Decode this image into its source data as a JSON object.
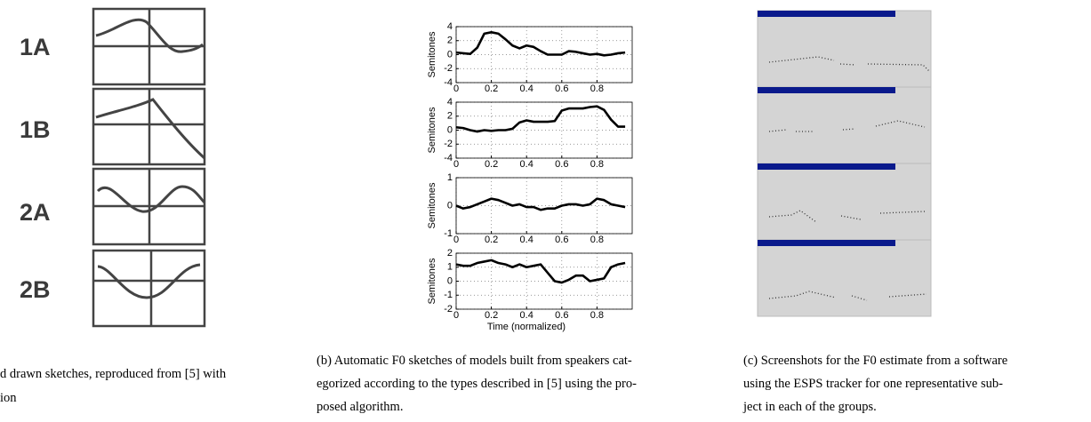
{
  "panel_a": {
    "labels": [
      "1A",
      "1B",
      "2A",
      "2B"
    ],
    "caption": [
      "d drawn sketches, reproduced from [5] with",
      "ion"
    ]
  },
  "panel_b": {
    "caption": [
      "(b) Automatic F0 sketches of models built from speakers cat-",
      "egorized according to the types described in [5] using the pro-",
      "posed algorithm."
    ]
  },
  "panel_c": {
    "caption": [
      "(c) Screenshots for the F0 estimate from a software",
      "using the ESPS tracker for one representative sub-",
      "ject in each of the groups."
    ]
  },
  "chart_data": [
    {
      "type": "line",
      "ylabel": "Semitones",
      "xlim": [
        0,
        1
      ],
      "xticks": [
        0,
        0.2,
        0.4,
        0.6,
        0.8
      ],
      "ylim": [
        -4,
        4
      ],
      "yticks": [
        -4,
        -2,
        0,
        2,
        4
      ],
      "grid": true,
      "x": [
        0,
        0.04,
        0.08,
        0.12,
        0.16,
        0.2,
        0.24,
        0.28,
        0.32,
        0.36,
        0.4,
        0.44,
        0.48,
        0.52,
        0.56,
        0.6,
        0.64,
        0.68,
        0.72,
        0.76,
        0.8,
        0.84,
        0.88,
        0.92,
        0.96
      ],
      "series": [
        {
          "color": "#000000",
          "values": [
            0.3,
            0.2,
            0.1,
            1.0,
            3.0,
            3.2,
            3.0,
            2.2,
            1.3,
            0.9,
            1.3,
            1.1,
            0.5,
            0,
            0,
            0,
            0.5,
            0.4,
            0.2,
            0,
            0.1,
            -0.1,
            0,
            0.2,
            0.3
          ]
        }
      ]
    },
    {
      "type": "line",
      "ylabel": "Semitones",
      "xlim": [
        0,
        1
      ],
      "xticks": [
        0,
        0.2,
        0.4,
        0.6,
        0.8
      ],
      "ylim": [
        -4,
        4
      ],
      "yticks": [
        -4,
        -2,
        0,
        2,
        4
      ],
      "grid": true,
      "x": [
        0,
        0.04,
        0.08,
        0.12,
        0.16,
        0.2,
        0.24,
        0.28,
        0.32,
        0.36,
        0.4,
        0.44,
        0.48,
        0.52,
        0.56,
        0.6,
        0.64,
        0.68,
        0.72,
        0.76,
        0.8,
        0.84,
        0.88,
        0.92,
        0.96
      ],
      "series": [
        {
          "color": "#000000",
          "values": [
            0.4,
            0.3,
            0,
            -0.2,
            0,
            -0.1,
            0,
            0,
            0.2,
            1.1,
            1.4,
            1.2,
            1.2,
            1.2,
            1.3,
            2.8,
            3.1,
            3.1,
            3.1,
            3.3,
            3.4,
            2.9,
            1.5,
            0.5,
            0.5
          ]
        }
      ]
    },
    {
      "type": "line",
      "ylabel": "Semitones",
      "xlim": [
        0,
        1
      ],
      "xticks": [
        0,
        0.2,
        0.4,
        0.6,
        0.8
      ],
      "ylim": [
        -1,
        1
      ],
      "yticks": [
        -1,
        0,
        1
      ],
      "grid": true,
      "x": [
        0,
        0.04,
        0.08,
        0.12,
        0.16,
        0.2,
        0.24,
        0.28,
        0.32,
        0.36,
        0.4,
        0.44,
        0.48,
        0.52,
        0.56,
        0.6,
        0.64,
        0.68,
        0.72,
        0.76,
        0.8,
        0.84,
        0.88,
        0.92,
        0.96
      ],
      "series": [
        {
          "color": "#000000",
          "values": [
            0,
            -0.1,
            -0.05,
            0.05,
            0.15,
            0.25,
            0.2,
            0.1,
            0,
            0.05,
            -0.05,
            -0.05,
            -0.15,
            -0.1,
            -0.1,
            0,
            0.05,
            0.05,
            0,
            0.05,
            0.25,
            0.2,
            0.05,
            0,
            -0.05
          ]
        }
      ]
    },
    {
      "type": "line",
      "ylabel": "Semitones",
      "xlabel": "Time (normalized)",
      "xlim": [
        0,
        1
      ],
      "xticks": [
        0,
        0.2,
        0.4,
        0.6,
        0.8
      ],
      "ylim": [
        -2,
        2
      ],
      "yticks": [
        -2,
        -1,
        0,
        1,
        2
      ],
      "grid": true,
      "x": [
        0,
        0.04,
        0.08,
        0.12,
        0.16,
        0.2,
        0.24,
        0.28,
        0.32,
        0.36,
        0.4,
        0.44,
        0.48,
        0.52,
        0.56,
        0.6,
        0.64,
        0.68,
        0.72,
        0.76,
        0.8,
        0.84,
        0.88,
        0.92,
        0.96
      ],
      "series": [
        {
          "color": "#000000",
          "values": [
            1.2,
            1.1,
            1.1,
            1.3,
            1.4,
            1.5,
            1.3,
            1.2,
            1.0,
            1.2,
            1.0,
            1.1,
            1.2,
            0.6,
            0,
            -0.1,
            0.1,
            0.4,
            0.4,
            0,
            0.1,
            0.2,
            1.0,
            1.2,
            1.3
          ]
        }
      ]
    }
  ]
}
